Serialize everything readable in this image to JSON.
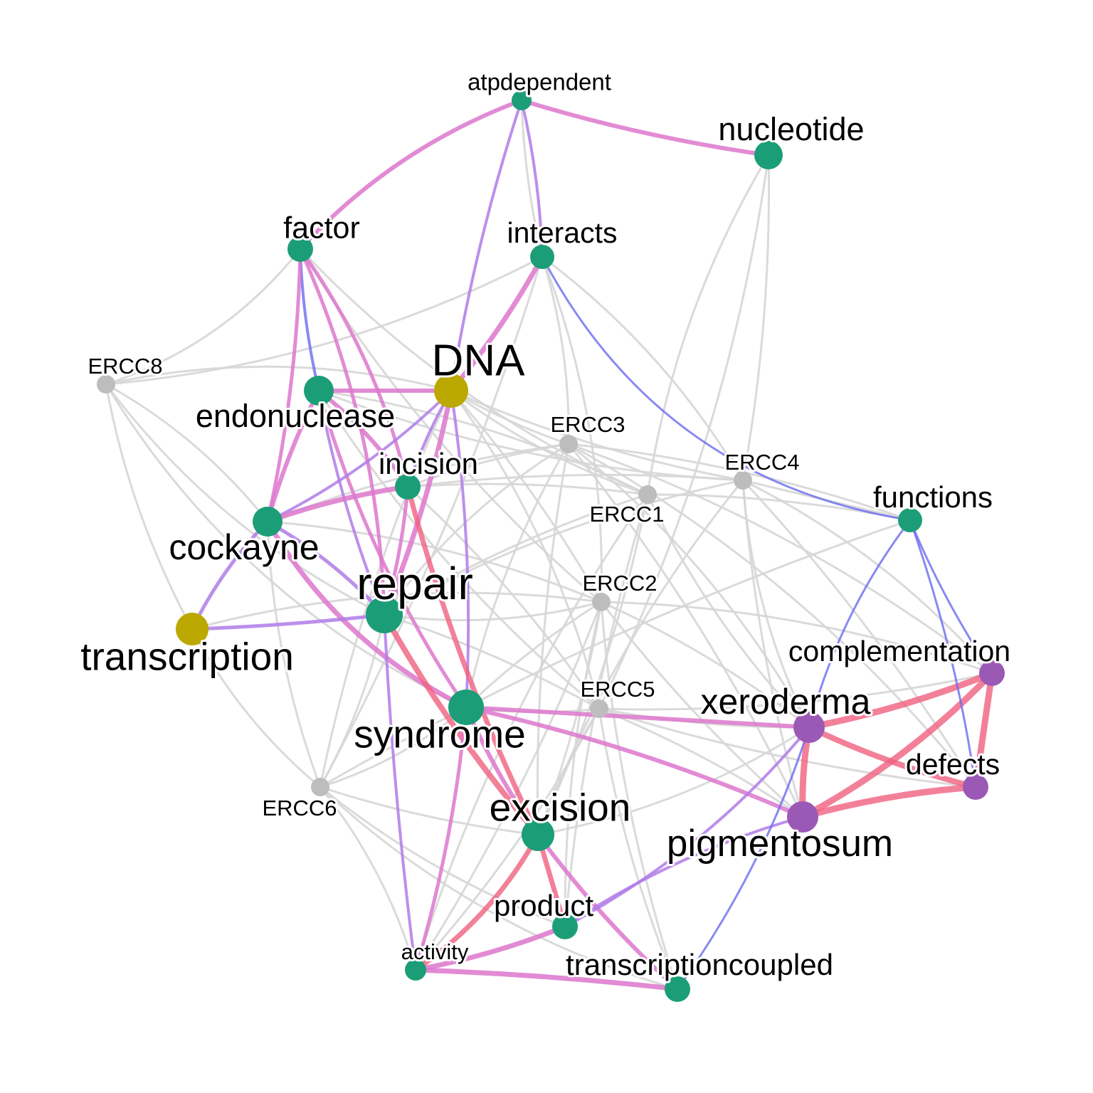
{
  "colors": {
    "term": "#1b9e77",
    "doc": "#bba800",
    "purple": "#9b59b6",
    "gene": "#bdbdbd",
    "edge_grey": "#d6d6d6",
    "edge_pink": "#dd77cc",
    "edge_red": "#f06080",
    "edge_blue": "#6b6bf0",
    "edge_violet": "#b07be8"
  },
  "nodes": [
    {
      "id": "atpdependent",
      "label": "atpdependent",
      "group": "term"
    },
    {
      "id": "nucleotide",
      "label": "nucleotide",
      "group": "term"
    },
    {
      "id": "factor",
      "label": "factor",
      "group": "term"
    },
    {
      "id": "interacts",
      "label": "interacts",
      "group": "term"
    },
    {
      "id": "ERCC8",
      "label": "ERCC8",
      "group": "gene"
    },
    {
      "id": "DNA",
      "label": "DNA",
      "group": "doc"
    },
    {
      "id": "endonuclease",
      "label": "endonuclease",
      "group": "term"
    },
    {
      "id": "ERCC3",
      "label": "ERCC3",
      "group": "gene"
    },
    {
      "id": "ERCC4",
      "label": "ERCC4",
      "group": "gene"
    },
    {
      "id": "incision",
      "label": "incision",
      "group": "term"
    },
    {
      "id": "ERCC1",
      "label": "ERCC1",
      "group": "gene"
    },
    {
      "id": "functions",
      "label": "functions",
      "group": "term"
    },
    {
      "id": "cockayne",
      "label": "cockayne",
      "group": "term"
    },
    {
      "id": "repair",
      "label": "repair",
      "group": "term"
    },
    {
      "id": "ERCC2",
      "label": "ERCC2",
      "group": "gene"
    },
    {
      "id": "transcription",
      "label": "transcription",
      "group": "doc"
    },
    {
      "id": "complementation",
      "label": "complementation",
      "group": "purple"
    },
    {
      "id": "ERCC5",
      "label": "ERCC5",
      "group": "gene"
    },
    {
      "id": "xeroderma",
      "label": "xeroderma",
      "group": "purple"
    },
    {
      "id": "syndrome",
      "label": "syndrome",
      "group": "term"
    },
    {
      "id": "defects",
      "label": "defects",
      "group": "purple"
    },
    {
      "id": "ERCC6",
      "label": "ERCC6",
      "group": "gene"
    },
    {
      "id": "excision",
      "label": "excision",
      "group": "term"
    },
    {
      "id": "pigmentosum",
      "label": "pigmentosum",
      "group": "purple"
    },
    {
      "id": "product",
      "label": "product",
      "group": "term"
    },
    {
      "id": "activity",
      "label": "activity",
      "group": "term"
    },
    {
      "id": "transcriptioncoupled",
      "label": "transcriptioncoupled",
      "group": "term"
    }
  ]
}
